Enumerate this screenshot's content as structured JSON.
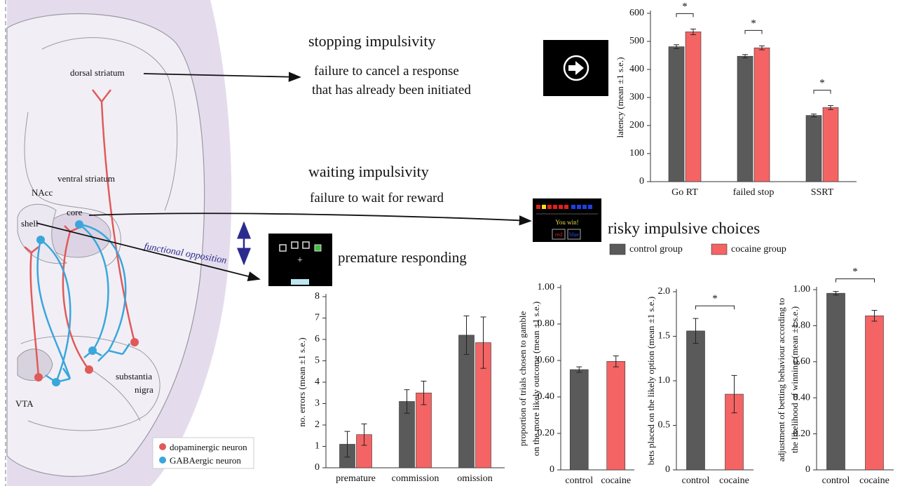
{
  "chart_data": [
    {
      "type": "bar",
      "ylabel": "latency (mean ±1 s.e.)",
      "categories": [
        "Go RT",
        "failed stop",
        "SSRT"
      ],
      "series": [
        {
          "color": "#5a5a5a",
          "values": [
            481,
            447,
            236
          ],
          "errors": [
            7,
            6,
            5
          ]
        },
        {
          "color": "#f46464",
          "values": [
            534,
            477,
            264
          ],
          "errors": [
            10,
            7,
            7
          ]
        }
      ],
      "ylim": [
        0,
        600
      ],
      "yticks": [
        0,
        100,
        200,
        300,
        400,
        500,
        600
      ],
      "significance": [
        "*",
        "*",
        "*"
      ]
    },
    {
      "type": "bar",
      "ylabel": "no. errors (mean ±1 s.e.)",
      "categories": [
        "premature",
        "commission",
        "omission"
      ],
      "series": [
        {
          "color": "#5a5a5a",
          "values": [
            1.1,
            3.1,
            6.2
          ],
          "errors": [
            0.6,
            0.55,
            0.9
          ]
        },
        {
          "color": "#f46464",
          "values": [
            1.55,
            3.5,
            5.85
          ],
          "errors": [
            0.5,
            0.55,
            1.2
          ]
        }
      ],
      "ylim": [
        0,
        8
      ],
      "yticks": [
        0,
        1,
        2,
        3,
        4,
        5,
        6,
        7,
        8
      ]
    },
    {
      "type": "bar",
      "ylabel": [
        "proportion of trials chosen to gamble",
        "on the more likely outcome (mean ±1 s.e.)"
      ],
      "categories": [
        "control",
        "cocaine"
      ],
      "colors": [
        "#5a5a5a",
        "#f46464"
      ],
      "values": [
        0.55,
        0.595
      ],
      "errors": [
        0.015,
        0.03
      ],
      "ylim": [
        0,
        1
      ],
      "yticks": [
        0,
        {
          "value": 0.2,
          "label": "0.20"
        },
        {
          "value": 0.4,
          "label": "0.40"
        },
        {
          "value": 0.6,
          "label": "0.60"
        },
        {
          "value": 0.8,
          "label": "0.80"
        },
        {
          "value": 1,
          "label": "1.00"
        }
      ]
    },
    {
      "type": "bar",
      "ylabel": "bets placed on the likely option (mean ±1 s.e.)",
      "categories": [
        "control",
        "cocaine"
      ],
      "colors": [
        "#5a5a5a",
        "#f46464"
      ],
      "values": [
        1.56,
        0.85
      ],
      "errors": [
        0.14,
        0.21
      ],
      "ylim": [
        0,
        2
      ],
      "yticks": [
        0,
        0.5,
        {
          "value": 1,
          "label": "1.0"
        },
        1.5,
        {
          "value": 2,
          "label": "2.0"
        }
      ],
      "significance": "*"
    },
    {
      "type": "bar",
      "ylabel": [
        "adjustment of betting behaviour according to",
        "the likelihood of winning (mean ±1 s.e.)"
      ],
      "categories": [
        "control",
        "cocaine"
      ],
      "colors": [
        "#5a5a5a",
        "#f46464"
      ],
      "values": [
        0.98,
        0.855
      ],
      "errors": [
        0.01,
        0.03
      ],
      "ylim": [
        0,
        1
      ],
      "yticks": [
        0,
        {
          "value": 0.2,
          "label": "0.20"
        },
        {
          "value": 0.4,
          "label": "0.40"
        },
        {
          "value": 0.6,
          "label": "0.60"
        },
        {
          "value": 0.8,
          "label": "0.80"
        },
        {
          "value": 1,
          "label": "1.00"
        }
      ],
      "significance": "*"
    }
  ],
  "legend": [
    {
      "label": "control group",
      "color": "#5a5a5a"
    },
    {
      "label": "cocaine group",
      "color": "#f46464"
    }
  ],
  "diagram": {
    "stopping": {
      "title": "stopping impulsivity",
      "lines": [
        "failure to cancel a response",
        "that has already been initiated"
      ]
    },
    "waiting": {
      "title": "waiting impulsivity",
      "line": "failure to wait for reward"
    },
    "risky": "risky impulsive choices",
    "premature": "premature responding",
    "labels": {
      "dorsal": "dorsal striatum",
      "ventral": "ventral striatum",
      "nacc": "NAcc",
      "core": "core",
      "shell": "shell",
      "opposition": "functional opposition",
      "substantia": "substantia",
      "nigra": "nigra",
      "vta": "VTA"
    },
    "neuron_legend": {
      "dopaminergic": "dopaminergic neuron",
      "gaba": "GABAergic neuron"
    },
    "task": {
      "win": "You win!",
      "red": "red",
      "blue": "blue",
      "fixation": "+"
    }
  }
}
